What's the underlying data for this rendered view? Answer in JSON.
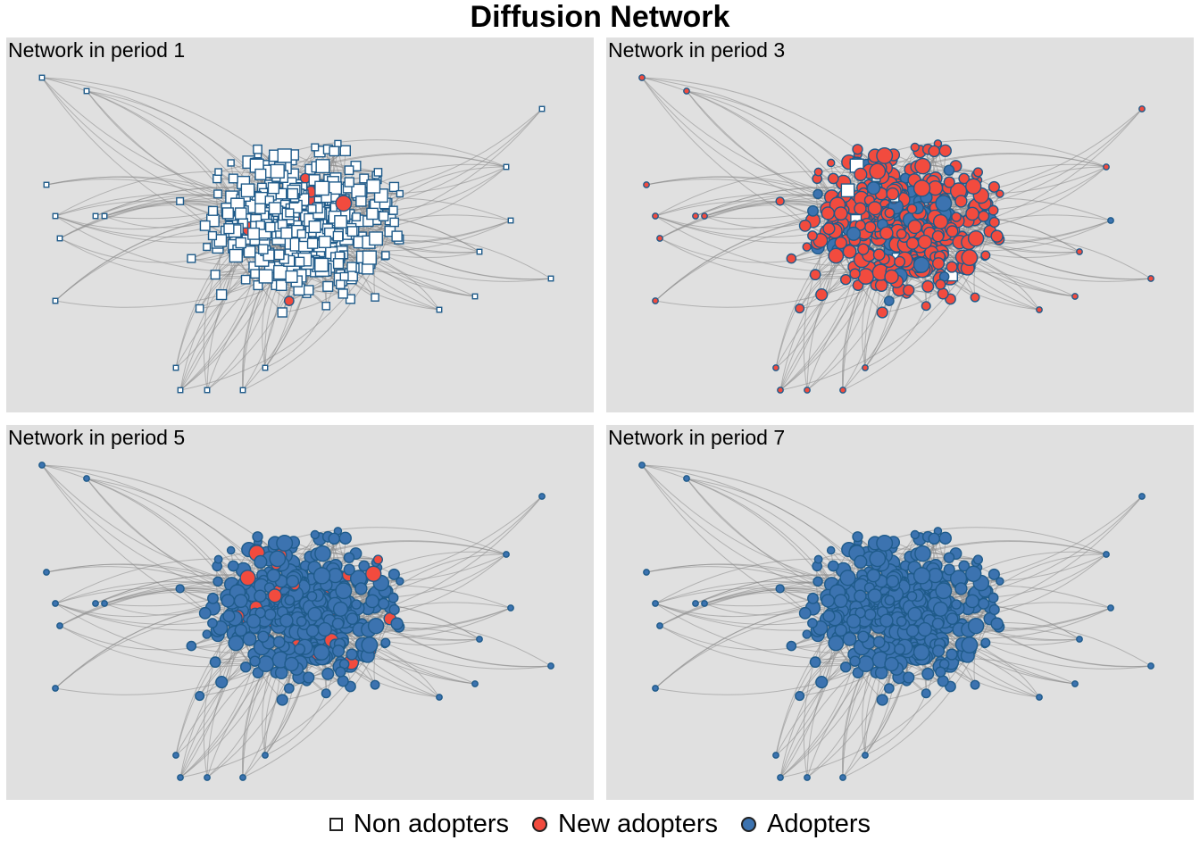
{
  "title": "Diffusion Network",
  "panels": [
    {
      "label": "Network in period 1",
      "period": 1,
      "adopted_share": 0.02
    },
    {
      "label": "Network in period 3",
      "period": 3,
      "adopted_share": 0.97
    },
    {
      "label": "Network in period 5",
      "period": 5,
      "adopted_share": 1.0
    },
    {
      "label": "Network in period 7",
      "period": 7,
      "adopted_share": 1.0
    }
  ],
  "legend": [
    {
      "label": "Non adopters",
      "shape": "square",
      "fill": "#ffffff",
      "stroke": "#1f5b8a"
    },
    {
      "label": "New adopters",
      "shape": "circle",
      "fill": "#f24b3e",
      "stroke": "#1f5b8a"
    },
    {
      "label": "Adopters",
      "shape": "circle",
      "fill": "#3c73b0",
      "stroke": "#1f5b8a"
    }
  ],
  "colors": {
    "panel_background": "#e0e0e0",
    "edge": "#8a8a8a",
    "node_border": "#1f5b8a",
    "non_adopter": "#ffffff",
    "new_adopter": "#f24b3e",
    "adopter": "#3c73b0"
  }
}
